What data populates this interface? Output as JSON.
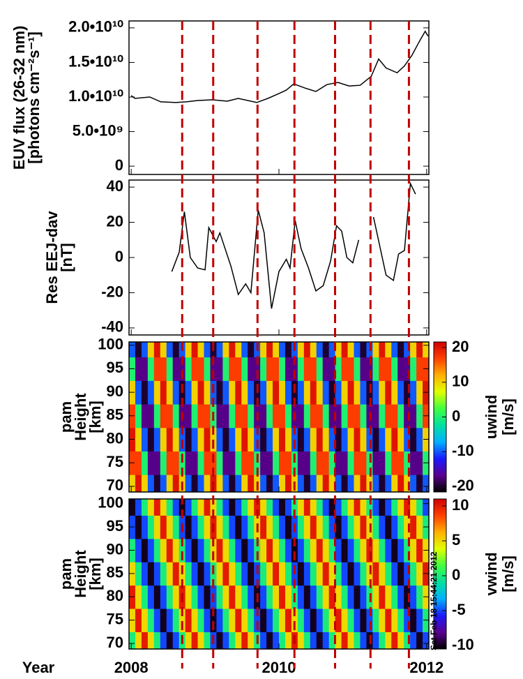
{
  "chart_data": [
    {
      "type": "line",
      "ylabel": [
        "EUV flux (26-32 nm)",
        "[photons cm⁻²s⁻¹]"
      ],
      "color": "#000000",
      "x": [
        2008.0,
        2008.05,
        2008.25,
        2008.4,
        2008.6,
        2008.75,
        2008.9,
        2009.1,
        2009.3,
        2009.45,
        2009.7,
        2009.85,
        2010.0,
        2010.1,
        2010.2,
        2010.35,
        2010.5,
        2010.65,
        2010.8,
        2010.95,
        2011.1,
        2011.25,
        2011.35,
        2011.45,
        2011.6,
        2011.7,
        2011.8,
        2011.9,
        2011.98,
        2012.02
      ],
      "values": [
        10200000000,
        9800000000,
        10000000000,
        9300000000,
        9200000000,
        9300000000,
        9500000000,
        9600000000,
        9400000000,
        9800000000,
        9200000000,
        9800000000,
        10500000000,
        11000000000,
        11900000000,
        11300000000,
        10800000000,
        11800000000,
        12100000000,
        11600000000,
        11700000000,
        13000000000,
        15500000000,
        14200000000,
        13500000000,
        14500000000,
        16000000000,
        18000000000,
        19500000000,
        18800000000
      ],
      "ylim": [
        -1200000000,
        21000000000
      ],
      "yticks": [
        0,
        {
          "value": 5000000000,
          "label": "5.0•10⁹"
        },
        {
          "value": 10000000000,
          "label": "1.0•10¹⁰"
        },
        {
          "value": 15000000000,
          "label": "1.5•10¹⁰"
        },
        {
          "value": 20000000000,
          "label": "2.0•10¹⁰"
        }
      ]
    },
    {
      "type": "line",
      "ylabel": [
        "Res EEJ-dav",
        "[nT]"
      ],
      "color": "#000000",
      "x": [
        2008.55,
        2008.65,
        2008.72,
        2008.8,
        2008.9,
        2009.0,
        2009.05,
        2009.15,
        2009.2,
        2009.35,
        2009.45,
        2009.55,
        2009.62,
        2009.72,
        2009.8,
        2009.9,
        2010.0,
        2010.1,
        2010.15,
        2010.22,
        2010.3,
        2010.4,
        2010.5,
        2010.6,
        2010.7,
        2010.78,
        2010.85,
        2010.92,
        2011.0,
        2011.08,
        2011.18,
        2011.28,
        2011.45,
        2011.55,
        2011.62,
        2011.7,
        2011.78,
        2011.85
      ],
      "values": [
        -8,
        3,
        26,
        0,
        -6,
        -7,
        17,
        9,
        14,
        -5,
        -21,
        -15,
        -20,
        27,
        14,
        -29,
        -8,
        -1,
        -6,
        21,
        5,
        -6,
        -19,
        -16,
        -2,
        18,
        15,
        0,
        -3,
        10,
        null,
        23,
        -10,
        -13,
        2,
        4,
        42,
        36
      ],
      "ylim": [
        -44,
        44
      ],
      "yticks": [
        -40,
        -20,
        0,
        20,
        40
      ]
    },
    {
      "type": "heatmap",
      "ylabel": [
        "pam",
        "Height",
        "[km]"
      ],
      "zlabel": [
        "uwind",
        "[m/s]"
      ],
      "heights": [
        70,
        75,
        80,
        85,
        90,
        95,
        100
      ],
      "z": [
        [
          10,
          20,
          10,
          -10,
          -20,
          -10,
          10,
          20,
          10,
          -10,
          -20,
          -10,
          10,
          20,
          10,
          -10,
          -20,
          -10,
          10,
          20,
          10,
          -10,
          -20,
          -10,
          10,
          20,
          10,
          -10,
          -20,
          -10,
          10,
          20,
          10,
          -10,
          -20,
          -10,
          10,
          20,
          10,
          -10,
          -20,
          -10,
          10,
          20,
          10,
          -10,
          -20,
          -10
        ],
        [
          17,
          17,
          0,
          -17,
          -17,
          0,
          17,
          17,
          0,
          -17,
          -17,
          0,
          17,
          17,
          0,
          -17,
          -17,
          0,
          17,
          17,
          0,
          -17,
          -17,
          0,
          17,
          17,
          0,
          -17,
          -17,
          0,
          17,
          17,
          0,
          -17,
          -17,
          0,
          17,
          17,
          0,
          -17,
          -17,
          0,
          17,
          17,
          0,
          -17,
          -17,
          0
        ],
        [
          20,
          10,
          -10,
          -20,
          -10,
          10,
          20,
          10,
          -10,
          -20,
          -10,
          10,
          20,
          10,
          -10,
          -20,
          -10,
          10,
          20,
          10,
          -10,
          -20,
          -10,
          10,
          20,
          10,
          -10,
          -20,
          -10,
          10,
          20,
          10,
          -10,
          -20,
          -10,
          10,
          20,
          10,
          -10,
          -20,
          -10,
          10,
          20,
          10,
          -10,
          -20,
          -10,
          10
        ],
        [
          17,
          0,
          -17,
          -17,
          0,
          17,
          17,
          0,
          -17,
          -17,
          0,
          17,
          17,
          0,
          -17,
          -17,
          0,
          17,
          17,
          0,
          -17,
          -17,
          0,
          17,
          17,
          0,
          -17,
          -17,
          0,
          17,
          17,
          0,
          -17,
          -17,
          0,
          17,
          17,
          0,
          -17,
          -17,
          0,
          17,
          17,
          0,
          -17,
          -17,
          0,
          17
        ],
        [
          10,
          -10,
          -20,
          -10,
          10,
          20,
          10,
          -10,
          -20,
          -10,
          10,
          20,
          10,
          -10,
          -20,
          -10,
          10,
          20,
          10,
          -10,
          -20,
          -10,
          10,
          20,
          10,
          -10,
          -20,
          -10,
          10,
          20,
          10,
          -10,
          -20,
          -10,
          10,
          20,
          10,
          -10,
          -20,
          -10,
          10,
          20,
          10,
          -10,
          -20,
          -10,
          10,
          20
        ],
        [
          0,
          -17,
          -17,
          0,
          17,
          17,
          0,
          -17,
          -17,
          0,
          17,
          17,
          0,
          -17,
          -17,
          0,
          17,
          17,
          0,
          -17,
          -17,
          0,
          17,
          17,
          0,
          -17,
          -17,
          0,
          17,
          17,
          0,
          -17,
          -17,
          0,
          17,
          17,
          0,
          -17,
          -17,
          0,
          17,
          17,
          0,
          -17,
          -17,
          0,
          17,
          17
        ],
        [
          -10,
          -20,
          -10,
          10,
          20,
          10,
          -10,
          -20,
          -10,
          10,
          20,
          10,
          -10,
          -20,
          -10,
          10,
          20,
          10,
          -10,
          -20,
          -10,
          10,
          20,
          10,
          -10,
          -20,
          -10,
          10,
          20,
          10,
          -10,
          -20,
          -10,
          10,
          20,
          10,
          -10,
          -20,
          -10,
          10,
          20,
          10,
          -10,
          -20,
          -10,
          10,
          20,
          10
        ]
      ],
      "ylim": [
        68.8,
        100.7
      ],
      "yticks": [
        70,
        75,
        80,
        85,
        90,
        95,
        100
      ],
      "zlim": [
        -21.6,
        21.6
      ],
      "zticks": [
        -20,
        -10,
        0,
        10,
        20
      ],
      "colormap": [
        "#000000",
        "#5a0090",
        "#1a1aff",
        "#00b0ff",
        "#00e0a0",
        "#40ff40",
        "#e0ff00",
        "#ffb000",
        "#ff4000",
        "#d00000"
      ]
    },
    {
      "type": "heatmap",
      "ylabel": [
        "pam",
        "Height",
        "[km]"
      ],
      "zlabel": [
        "vwind",
        "[m/s]"
      ],
      "heights": [
        70,
        75,
        80,
        85,
        90,
        95,
        100
      ],
      "z": [
        [
          0,
          5,
          10,
          5,
          0,
          -5,
          -10,
          -5,
          0,
          5,
          10,
          5,
          0,
          -5,
          -10,
          -5,
          0,
          5,
          10,
          5,
          0,
          -5,
          -10,
          -5,
          0,
          5,
          10,
          5,
          0,
          -5,
          -10,
          -5,
          0,
          5,
          10,
          5,
          0,
          -5,
          -10,
          -5,
          0,
          5,
          10,
          5,
          0,
          -5,
          -10,
          -5
        ],
        [
          5,
          10,
          5,
          0,
          -5,
          -10,
          -5,
          0,
          5,
          10,
          5,
          0,
          -5,
          -10,
          -5,
          0,
          5,
          10,
          5,
          0,
          -5,
          -10,
          -5,
          0,
          5,
          10,
          5,
          0,
          -5,
          -10,
          -5,
          0,
          5,
          10,
          5,
          0,
          -5,
          -10,
          -5,
          0,
          5,
          10,
          5,
          0,
          -5,
          -10,
          -5,
          0
        ],
        [
          10,
          5,
          0,
          -5,
          -10,
          -5,
          0,
          5,
          10,
          5,
          0,
          -5,
          -10,
          -5,
          0,
          5,
          10,
          5,
          0,
          -5,
          -10,
          -5,
          0,
          5,
          10,
          5,
          0,
          -5,
          -10,
          -5,
          0,
          5,
          10,
          5,
          0,
          -5,
          -10,
          -5,
          0,
          5,
          10,
          5,
          0,
          -5,
          -10,
          -5,
          0,
          5
        ],
        [
          5,
          0,
          -5,
          -10,
          -5,
          0,
          5,
          10,
          5,
          0,
          -5,
          -10,
          -5,
          0,
          5,
          10,
          5,
          0,
          -5,
          -10,
          -5,
          0,
          5,
          10,
          5,
          0,
          -5,
          -10,
          -5,
          0,
          5,
          10,
          5,
          0,
          -5,
          -10,
          -5,
          0,
          5,
          10,
          5,
          0,
          -5,
          -10,
          -5,
          0,
          5,
          10
        ],
        [
          0,
          -5,
          -10,
          -5,
          0,
          5,
          10,
          5,
          0,
          -5,
          -10,
          -5,
          0,
          5,
          10,
          5,
          0,
          -5,
          -10,
          -5,
          0,
          5,
          10,
          5,
          0,
          -5,
          -10,
          -5,
          0,
          5,
          10,
          5,
          0,
          -5,
          -10,
          -5,
          0,
          5,
          10,
          5,
          0,
          -5,
          -10,
          -5,
          0,
          5,
          10,
          5
        ],
        [
          -5,
          -10,
          -5,
          0,
          5,
          10,
          5,
          0,
          -5,
          -10,
          -5,
          0,
          5,
          10,
          5,
          0,
          -5,
          -10,
          -5,
          0,
          5,
          10,
          5,
          0,
          -5,
          -10,
          -5,
          0,
          5,
          10,
          5,
          0,
          -5,
          -10,
          -5,
          0,
          5,
          10,
          5,
          0,
          -5,
          -10,
          -5,
          0,
          5,
          10,
          5,
          0
        ],
        [
          -10,
          -5,
          0,
          5,
          10,
          5,
          0,
          -5,
          -10,
          -5,
          0,
          5,
          10,
          5,
          0,
          -5,
          -10,
          -5,
          0,
          5,
          10,
          5,
          0,
          -5,
          -10,
          -5,
          0,
          5,
          10,
          5,
          0,
          -5,
          -10,
          -5,
          0,
          5,
          10,
          5,
          0,
          -5,
          -10,
          -5,
          0,
          5,
          10,
          5,
          0,
          -5
        ]
      ],
      "ylim": [
        68.8,
        101
      ],
      "yticks": [
        70,
        75,
        80,
        85,
        90,
        95,
        100
      ],
      "zlim": [
        -10.5,
        11
      ],
      "zticks": [
        -10,
        -5,
        0,
        5,
        10
      ],
      "colormap": [
        "#000000",
        "#5a0090",
        "#1a1aff",
        "#00b0ff",
        "#00e0a0",
        "#40ff40",
        "#e0ff00",
        "#ffb000",
        "#ff4000",
        "#d00000"
      ]
    }
  ],
  "x_axis": {
    "label": "Year",
    "xlim": [
      2007.97,
      2012.03
    ],
    "xticks": [
      2008,
      2010,
      2012
    ]
  },
  "markers": {
    "x": [
      2008.69,
      2009.11,
      2009.71,
      2010.21,
      2010.76,
      2011.24,
      2011.76
    ],
    "color": "#c00000"
  },
  "timestamp": "Sat Feb 18 15:44:21 2012"
}
